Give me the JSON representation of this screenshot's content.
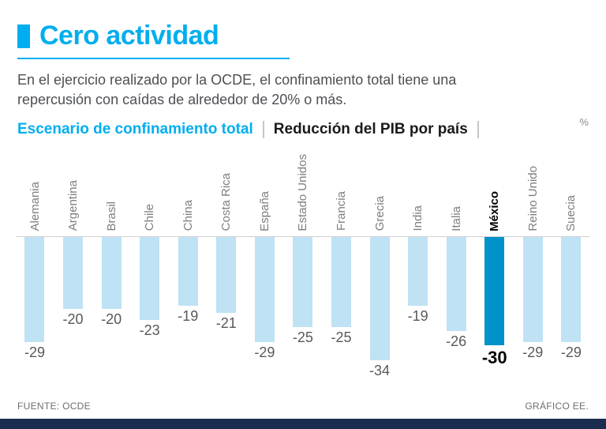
{
  "header": {
    "title": "Cero actividad",
    "intro_line1": "En el ejercicio realizado por la OCDE, el confinamiento total tiene una",
    "intro_line2": "repercusión con caídas de alrededor de 20% o más.",
    "subtitle_left": "Escenario de confinamiento total",
    "subtitle_right": "Reducción del PIB por país",
    "unit": "%"
  },
  "chart_data": {
    "type": "bar",
    "orientation": "vertical-negative",
    "title": "Cero actividad",
    "subtitle": "Escenario de confinamiento total | Reducción del PIB por país",
    "unit": "%",
    "categories": [
      "Alemania",
      "Argentina",
      "Brasil",
      "Chile",
      "China",
      "Costa Rica",
      "España",
      "Estado Unidos",
      "Francia",
      "Grecia",
      "India",
      "Italia",
      "México",
      "Reino Unido",
      "Suecia"
    ],
    "values": [
      -29,
      -20,
      -20,
      -23,
      -19,
      -21,
      -29,
      -25,
      -25,
      -34,
      -19,
      -26,
      -30,
      -29,
      -29
    ],
    "highlight_category": "México",
    "ylim": [
      -34,
      0
    ],
    "grid": false,
    "legend": false,
    "colors": {
      "bar": "#bfe2f4",
      "highlight": "#0092c8"
    }
  },
  "footer": {
    "source": "FUENTE: OCDE",
    "credit": "GRÁFICO EE."
  },
  "colors": {
    "accent": "#00aeef",
    "footer_bar": "#1b2d4f"
  }
}
